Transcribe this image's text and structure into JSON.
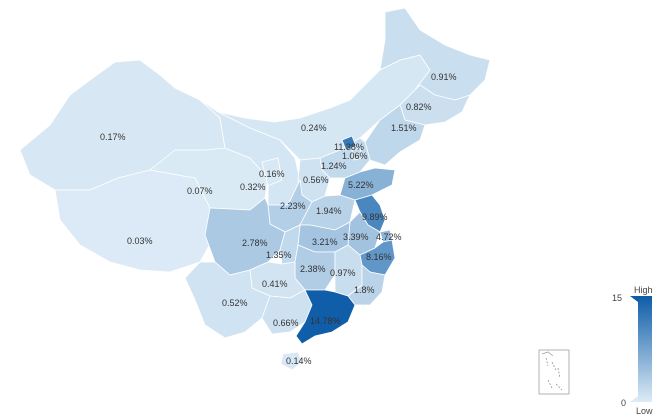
{
  "map": {
    "colors": {
      "low": "#dcebf6",
      "high": "#0d5ca8",
      "outline": "#ffffff"
    },
    "regions": [
      {
        "id": "xinjiang",
        "label": "0.17%",
        "value": 0.17
      },
      {
        "id": "tibet",
        "label": "0.03%",
        "value": 0.03
      },
      {
        "id": "qinghai",
        "label": "0.07%",
        "value": 0.07
      },
      {
        "id": "gansu",
        "label": "0.32%",
        "value": 0.32
      },
      {
        "id": "ningxia",
        "label": "0.16%",
        "value": 0.16
      },
      {
        "id": "inner-mongolia",
        "label": "0.24%",
        "value": 0.24
      },
      {
        "id": "heilongjiang",
        "label": "0.91%",
        "value": 0.91
      },
      {
        "id": "jilin",
        "label": "0.82%",
        "value": 0.82
      },
      {
        "id": "liaoning",
        "label": "1.51%",
        "value": 1.51
      },
      {
        "id": "beijing",
        "label": "11.38%",
        "value": 11.38
      },
      {
        "id": "tianjin",
        "label": "1.06%",
        "value": 1.06
      },
      {
        "id": "hebei",
        "label": "1.24%",
        "value": 1.24
      },
      {
        "id": "shanxi",
        "label": "0.56%",
        "value": 0.56
      },
      {
        "id": "shaanxi",
        "label": "2.23%",
        "value": 2.23
      },
      {
        "id": "shandong",
        "label": "5.22%",
        "value": 5.22
      },
      {
        "id": "henan",
        "label": "1.94%",
        "value": 1.94
      },
      {
        "id": "jiangsu",
        "label": "9.89%",
        "value": 9.89
      },
      {
        "id": "shanghai",
        "label": "4.72%",
        "value": 4.72
      },
      {
        "id": "anhui",
        "label": "3.39%",
        "value": 3.39
      },
      {
        "id": "hubei",
        "label": "3.21%",
        "value": 3.21
      },
      {
        "id": "zhejiang",
        "label": "8.16%",
        "value": 8.16
      },
      {
        "id": "sichuan",
        "label": "2.78%",
        "value": 2.78
      },
      {
        "id": "chongqing",
        "label": "1.35%",
        "value": 1.35
      },
      {
        "id": "hunan",
        "label": "2.38%",
        "value": 2.38
      },
      {
        "id": "jiangxi",
        "label": "0.97%",
        "value": 0.97
      },
      {
        "id": "fujian",
        "label": "1.8%",
        "value": 1.8
      },
      {
        "id": "guizhou",
        "label": "0.41%",
        "value": 0.41
      },
      {
        "id": "yunnan",
        "label": "0.52%",
        "value": 0.52
      },
      {
        "id": "guangxi",
        "label": "0.66%",
        "value": 0.66
      },
      {
        "id": "guangdong",
        "label": "14.78%",
        "value": 14.78
      },
      {
        "id": "hainan",
        "label": "0.14%",
        "value": 0.14
      }
    ]
  },
  "legend": {
    "max": 15,
    "min": 0,
    "max_label": "15",
    "min_label": "0",
    "high_label": "High",
    "low_label": "Low"
  }
}
